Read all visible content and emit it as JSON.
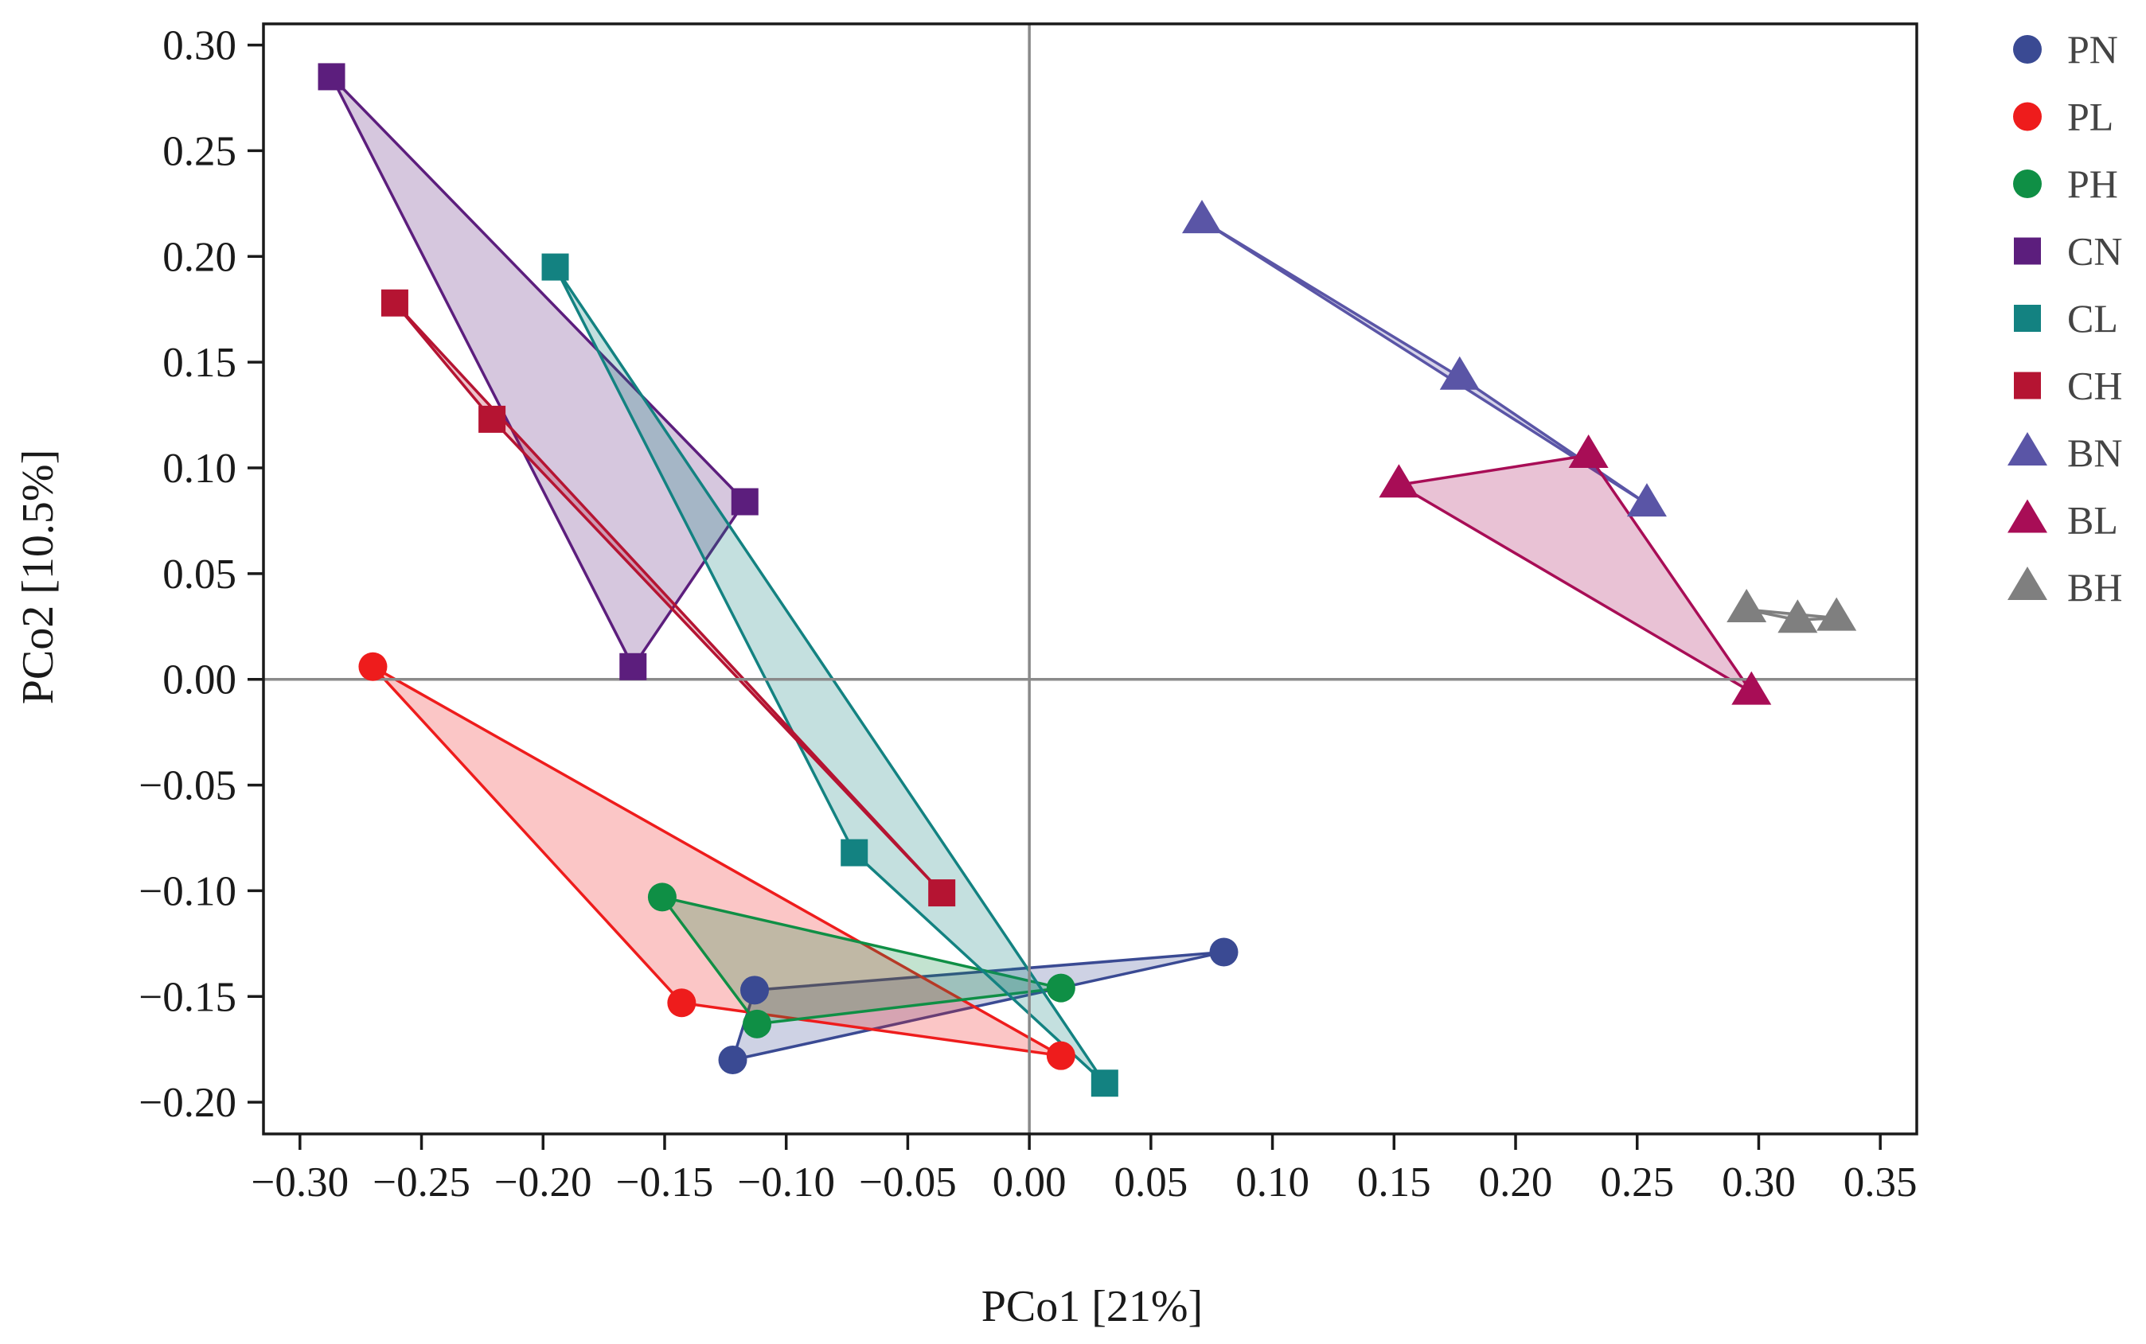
{
  "chart_data": {
    "type": "scatter",
    "xlabel": "PCo1 [21%]",
    "ylabel": "PCo2 [10.5%]",
    "xlim": [
      -0.315,
      0.365
    ],
    "ylim": [
      -0.215,
      0.31
    ],
    "xticks": [
      -0.3,
      -0.25,
      -0.2,
      -0.15,
      -0.1,
      -0.05,
      0.0,
      0.05,
      0.1,
      0.15,
      0.2,
      0.25,
      0.3,
      0.35
    ],
    "yticks": [
      -0.2,
      -0.15,
      -0.1,
      -0.05,
      0.0,
      0.05,
      0.1,
      0.15,
      0.2,
      0.25,
      0.3
    ],
    "xtick_labels": [
      "−0.30",
      "−0.25",
      "−0.20",
      "−0.15",
      "−0.10",
      "−0.05",
      "0.00",
      "0.05",
      "0.10",
      "0.15",
      "0.20",
      "0.25",
      "0.30",
      "0.35"
    ],
    "ytick_labels": [
      "−0.20",
      "−0.15",
      "−0.10",
      "−0.05",
      "0.00",
      "0.05",
      "0.10",
      "0.15",
      "0.20",
      "0.25",
      "0.30"
    ],
    "reference_lines": {
      "x": 0,
      "y": 0
    },
    "grid": false,
    "legend_position": "right",
    "series": [
      {
        "name": "PN",
        "marker": "circle",
        "color": "#3a4a93",
        "points": [
          [
            -0.113,
            -0.147
          ],
          [
            -0.122,
            -0.18
          ],
          [
            0.08,
            -0.129
          ]
        ]
      },
      {
        "name": "PL",
        "marker": "circle",
        "color": "#ee1c1c",
        "points": [
          [
            -0.27,
            0.006
          ],
          [
            -0.143,
            -0.153
          ],
          [
            0.013,
            -0.178
          ]
        ]
      },
      {
        "name": "PH",
        "marker": "circle",
        "color": "#0f8f45",
        "points": [
          [
            -0.151,
            -0.103
          ],
          [
            -0.112,
            -0.163
          ],
          [
            0.013,
            -0.146
          ]
        ]
      },
      {
        "name": "CN",
        "marker": "square",
        "color": "#5c1e7d",
        "points": [
          [
            -0.287,
            0.285
          ],
          [
            -0.117,
            0.084
          ],
          [
            -0.163,
            0.006
          ]
        ]
      },
      {
        "name": "CL",
        "marker": "square",
        "color": "#138281",
        "points": [
          [
            -0.195,
            0.195
          ],
          [
            -0.072,
            -0.082
          ],
          [
            0.031,
            -0.191
          ]
        ]
      },
      {
        "name": "CH",
        "marker": "square",
        "color": "#b51432",
        "points": [
          [
            -0.261,
            0.178
          ],
          [
            -0.221,
            0.123
          ],
          [
            -0.036,
            -0.101
          ]
        ]
      },
      {
        "name": "BN",
        "marker": "triangle",
        "color": "#5a55a6",
        "points": [
          [
            0.071,
            0.217
          ],
          [
            0.177,
            0.143
          ],
          [
            0.254,
            0.083
          ]
        ]
      },
      {
        "name": "BL",
        "marker": "triangle",
        "color": "#a80d56",
        "points": [
          [
            0.152,
            0.092
          ],
          [
            0.23,
            0.106
          ],
          [
            0.297,
            -0.006
          ]
        ]
      },
      {
        "name": "BH",
        "marker": "triangle",
        "color": "#7f7f7f",
        "points": [
          [
            0.295,
            0.033
          ],
          [
            0.316,
            0.028
          ],
          [
            0.332,
            0.029
          ]
        ]
      }
    ]
  }
}
